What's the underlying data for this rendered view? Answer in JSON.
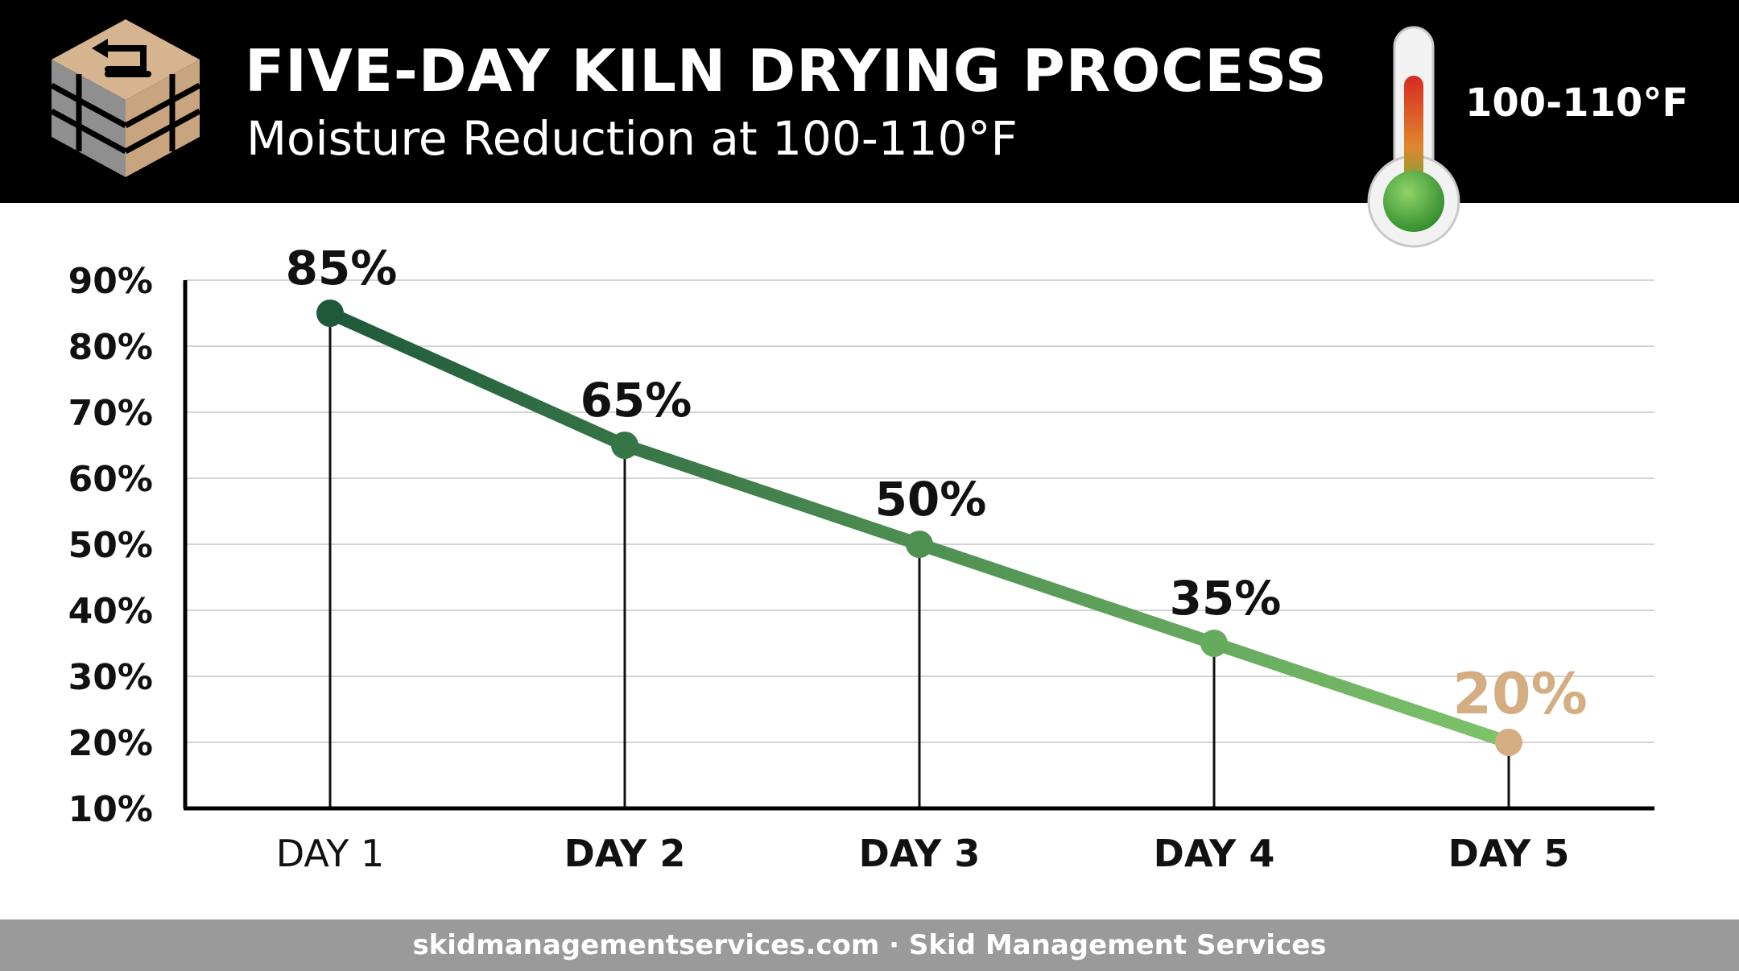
{
  "header": {
    "title": "FIVE-DAY KILN DRYING PROCESS",
    "subtitle": "Moisture Reduction at 100-110°F",
    "temperature_label": "100-110°F"
  },
  "footer": {
    "text": "skidmanagementservices.com · Skid Management Services"
  },
  "colors": {
    "header_bg": "#000000",
    "line_start": "#1e5a3a",
    "line_end": "#7ec46a",
    "final_point": "#d4ad82",
    "footer_bg": "#9a9a9a",
    "logo_tan": "#d6b48f",
    "logo_gray": "#8f8f8f"
  },
  "icons": [
    "pallet-logo-icon",
    "thermometer-icon"
  ],
  "chart_data": {
    "type": "line",
    "title": "FIVE-DAY KILN DRYING PROCESS",
    "subtitle": "Moisture Reduction at 100-110°F",
    "xlabel": "",
    "ylabel": "",
    "categories": [
      "DAY 1",
      "DAY 2",
      "DAY 3",
      "DAY 4",
      "DAY 5"
    ],
    "values": [
      85,
      65,
      50,
      35,
      20
    ],
    "data_labels": [
      "85%",
      "65%",
      "50%",
      "35%",
      "20%"
    ],
    "y_ticks": [
      10,
      20,
      30,
      40,
      50,
      60,
      70,
      80,
      90
    ],
    "y_tick_labels": [
      "10%",
      "20%",
      "30%",
      "40%",
      "50%",
      "60%",
      "70%",
      "80%",
      "90%"
    ],
    "ylim": [
      10,
      90
    ],
    "grid": true,
    "legend": "none"
  }
}
